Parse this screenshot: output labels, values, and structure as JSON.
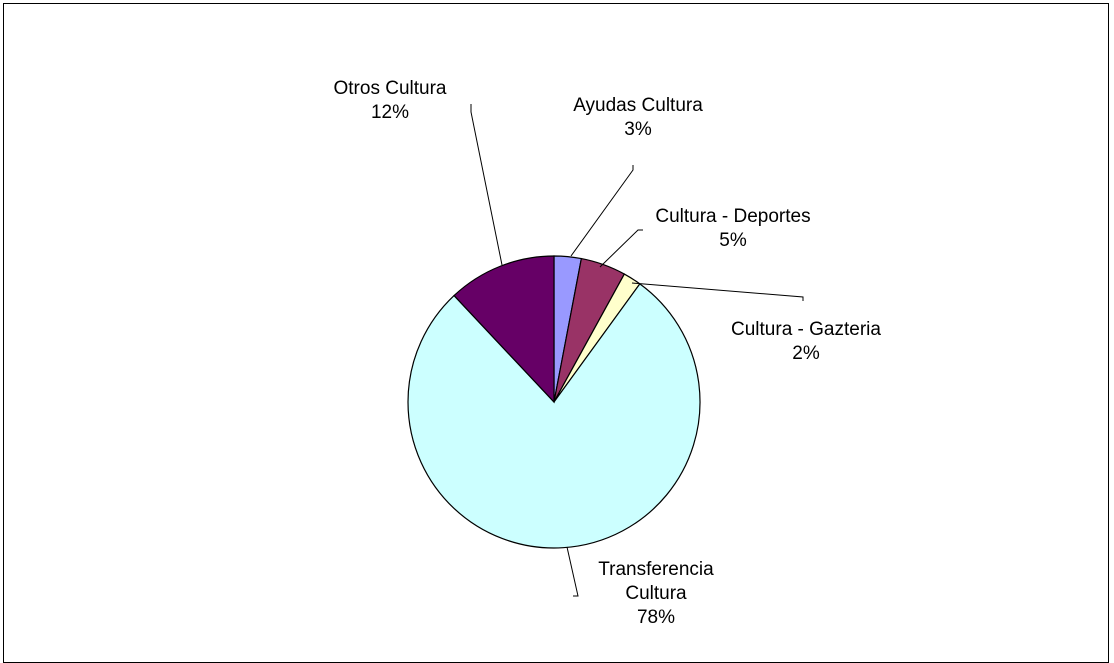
{
  "chart_data": {
    "type": "pie",
    "title": "",
    "slices": [
      {
        "name": "Ayudas Cultura",
        "value": 3,
        "label_lines": [
          "Ayudas Cultura",
          "3%"
        ],
        "color": "#9999FF"
      },
      {
        "name": "Cultura - Deportes",
        "value": 5,
        "label_lines": [
          "Cultura - Deportes",
          "5%"
        ],
        "color": "#993366"
      },
      {
        "name": "Cultura - Gazteria",
        "value": 2,
        "label_lines": [
          "Cultura - Gazteria",
          "2%"
        ],
        "color": "#FFFFCC"
      },
      {
        "name": "Transferencia Cultura",
        "value": 78,
        "label_lines": [
          "Transferencia",
          "Cultura",
          "78%"
        ],
        "color": "#CCFFFF"
      },
      {
        "name": "Otros Cultura",
        "value": 12,
        "label_lines": [
          "Otros Cultura",
          "12%"
        ],
        "color": "#660066"
      }
    ],
    "start_angle_deg": 0,
    "direction": "clockwise",
    "legend": "none",
    "data_labels": "outside with leader lines"
  }
}
